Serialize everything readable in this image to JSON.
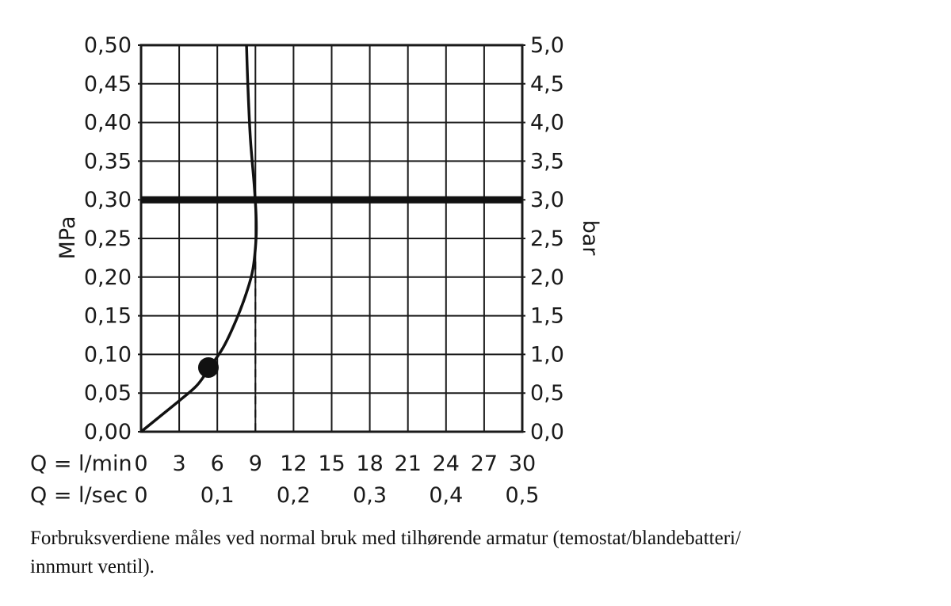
{
  "chart_data": {
    "type": "line",
    "left_axis_label": "MPa",
    "right_axis_label": "bar",
    "y_left_ticks": [
      "0,00",
      "0,05",
      "0,10",
      "0,15",
      "0,20",
      "0,25",
      "0,30",
      "0,35",
      "0,40",
      "0,45",
      "0,50"
    ],
    "y_right_ticks": [
      "0,0",
      "0,5",
      "1,0",
      "1,5",
      "2,0",
      "2,5",
      "3,0",
      "3,5",
      "4,0",
      "4,5",
      "5,0"
    ],
    "ylim": [
      0,
      0.5
    ],
    "xlim": [
      0,
      30
    ],
    "x_row1_label": "Q = l/min",
    "x_row1_ticks": [
      "0",
      "3",
      "6",
      "9",
      "12",
      "15",
      "18",
      "21",
      "24",
      "27",
      "30"
    ],
    "x_row2_label": "Q = l/sec",
    "x_row2_ticks": [
      "0",
      "0,1",
      "0,2",
      "0,3",
      "0,4",
      "0,5"
    ],
    "grid": true,
    "series": [
      {
        "x": [
          0,
          1.5,
          3,
          4.4,
          5.4,
          6.5,
          7.5,
          8.3,
          8.8,
          9.05,
          9.05,
          8.9,
          8.6,
          8.4,
          8.3
        ],
        "y": [
          0,
          0.02,
          0.04,
          0.06,
          0.083,
          0.11,
          0.145,
          0.18,
          0.21,
          0.25,
          0.28,
          0.32,
          0.38,
          0.45,
          0.5
        ]
      }
    ],
    "reference_line_y": 0.3,
    "marker_point": [
      5.3,
      0.083
    ],
    "dashed_drop_x": 9
  },
  "caption": {
    "line1": "Forbruksverdiene måles ved normal bruk med tilhørende armatur (temostat/blandebatteri/",
    "line2": "innmurt ventil)."
  }
}
